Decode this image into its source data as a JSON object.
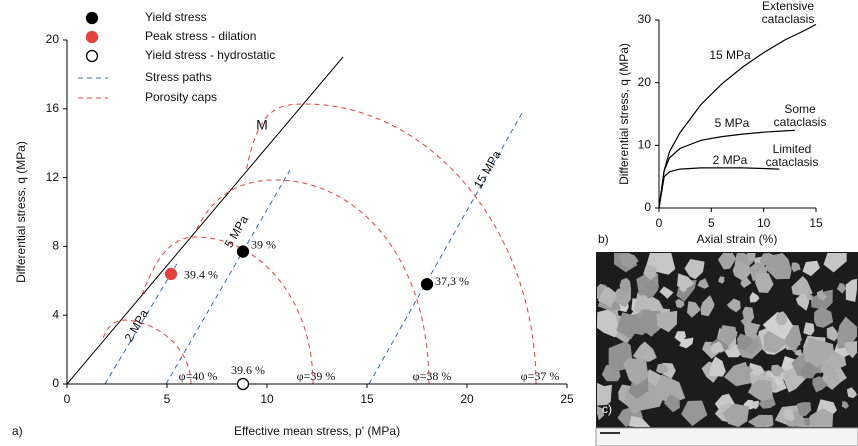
{
  "chart_data": [
    {
      "type": "scatter",
      "panel_label": "a)",
      "x_label": "Effective mean stress, p' (MPa)",
      "y_label": "Differential stress, q (MPa)",
      "xlim": [
        0,
        25
      ],
      "ylim": [
        0,
        20
      ],
      "xticks": [
        0,
        5,
        10,
        15,
        20,
        25
      ],
      "yticks": [
        0,
        4,
        8,
        12,
        16,
        20
      ],
      "series": [
        {
          "name": "Yield stress",
          "color": "#000000",
          "marker": "filled",
          "x": [
            8.8,
            18
          ],
          "values": [
            7.7,
            5.8
          ],
          "point_labels": [
            "39 %",
            "37,3 %"
          ]
        },
        {
          "name": "Peak stress - dilation",
          "color": "#e8413a",
          "marker": "filled",
          "x": [
            5.2
          ],
          "values": [
            6.4
          ],
          "point_labels": [
            "39.4 %"
          ]
        },
        {
          "name": "Yield stress - hydrostatic",
          "color": "#000000",
          "marker": "open",
          "x": [
            8.8
          ],
          "values": [
            0
          ],
          "point_labels": [
            "39.6 %"
          ]
        }
      ],
      "line_legend": [
        {
          "name": "Stress paths",
          "color": "#2f6fb7"
        },
        {
          "name": "Porosity caps",
          "color": "#e8413a"
        }
      ],
      "annotations": [
        "M",
        "2 MPa",
        "5 MPa",
        "15 MPa",
        "φ=40 %",
        "φ=39 %",
        "φ=38 %",
        "φ=37 %"
      ]
    },
    {
      "type": "line",
      "panel_label": "b)",
      "x_label": "Axial strain (%)",
      "y_label": "Differential stress, q (MPa)",
      "xlim": [
        0,
        15
      ],
      "ylim": [
        0,
        30
      ],
      "xticks": [
        0,
        5,
        10,
        15
      ],
      "yticks": [
        0,
        10,
        20,
        30
      ],
      "series": [
        {
          "name": "15 MPa",
          "color": "#000000",
          "x": [
            0,
            0.5,
            1,
            2,
            4,
            6,
            8,
            10,
            12,
            14,
            15
          ],
          "values": [
            0,
            6,
            9,
            12,
            16.5,
            19.8,
            22.5,
            24.8,
            26.8,
            28.4,
            29.3
          ]
        },
        {
          "name": "5 MPa",
          "color": "#000000",
          "x": [
            0,
            0.5,
            1,
            2,
            4,
            6,
            8,
            10,
            12,
            13
          ],
          "values": [
            0,
            6,
            8,
            9.5,
            10.8,
            11.4,
            11.8,
            12.1,
            12.3,
            12.4
          ]
        },
        {
          "name": "2 MPa",
          "color": "#000000",
          "x": [
            0,
            0.5,
            1,
            2,
            4,
            6,
            8,
            10,
            11.5
          ],
          "values": [
            0,
            5,
            5.8,
            6.2,
            6.4,
            6.4,
            6.4,
            6.3,
            6.2
          ]
        }
      ],
      "annotations": [
        [
          "Extensive",
          "cataclasis"
        ],
        [
          "Some",
          "cataclasis"
        ],
        [
          "Limited",
          "cataclasis"
        ]
      ]
    }
  ],
  "image_panel": {
    "panel_label": "c)"
  }
}
